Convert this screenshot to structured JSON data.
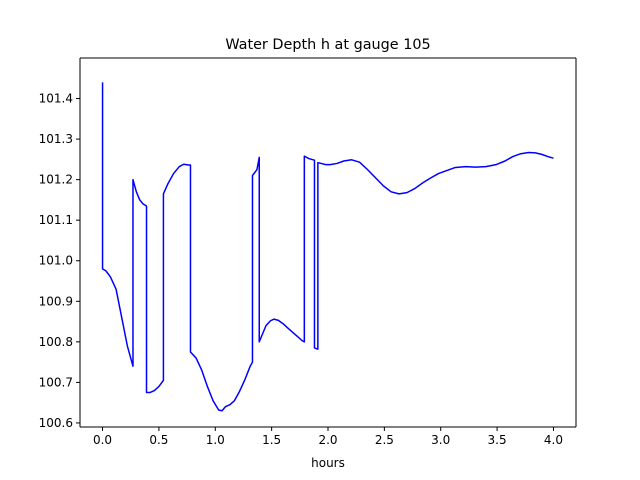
{
  "chart_data": {
    "type": "line",
    "title": "Water Depth h at gauge 105",
    "xlabel": "hours",
    "ylabel": "",
    "xlim": [
      -0.2,
      4.2
    ],
    "ylim": [
      100.59,
      101.5
    ],
    "xticks": [
      0.0,
      0.5,
      1.0,
      1.5,
      2.0,
      2.5,
      3.0,
      3.5,
      4.0
    ],
    "xtick_labels": [
      "0.0",
      "0.5",
      "1.0",
      "1.5",
      "2.0",
      "2.5",
      "3.0",
      "3.5",
      "4.0"
    ],
    "yticks": [
      100.6,
      100.7,
      100.8,
      100.9,
      101.0,
      101.1,
      101.2,
      101.3,
      101.4
    ],
    "ytick_labels": [
      "100.6",
      "100.7",
      "100.8",
      "100.9",
      "101.0",
      "101.1",
      "101.2",
      "101.3",
      "101.4"
    ],
    "grid": false,
    "legend": "none",
    "series": [
      {
        "color": "#0000ff",
        "x": [
          0.0,
          0.0,
          0.03,
          0.07,
          0.12,
          0.17,
          0.22,
          0.27,
          0.27,
          0.3,
          0.33,
          0.36,
          0.39,
          0.39,
          0.42,
          0.46,
          0.5,
          0.54,
          0.54,
          0.58,
          0.63,
          0.68,
          0.72,
          0.76,
          0.78,
          0.78,
          0.83,
          0.88,
          0.93,
          0.98,
          1.03,
          1.06,
          1.09,
          1.13,
          1.17,
          1.21,
          1.26,
          1.31,
          1.33,
          1.33,
          1.37,
          1.39,
          1.39,
          1.42,
          1.45,
          1.49,
          1.52,
          1.56,
          1.6,
          1.64,
          1.68,
          1.73,
          1.77,
          1.79,
          1.79,
          1.83,
          1.88,
          1.88,
          1.91,
          1.91,
          1.94,
          1.98,
          2.02,
          2.08,
          2.14,
          2.21,
          2.28,
          2.35,
          2.42,
          2.49,
          2.56,
          2.63,
          2.7,
          2.77,
          2.84,
          2.91,
          2.98,
          3.05,
          3.13,
          3.22,
          3.31,
          3.4,
          3.49,
          3.57,
          3.64,
          3.71,
          3.78,
          3.84,
          3.9,
          3.95,
          4.0
        ],
        "y": [
          101.44,
          100.98,
          100.975,
          100.96,
          100.93,
          100.86,
          100.79,
          100.74,
          101.2,
          101.17,
          101.15,
          101.14,
          101.135,
          100.675,
          100.675,
          100.68,
          100.69,
          100.705,
          101.165,
          101.19,
          101.215,
          101.232,
          101.238,
          101.236,
          101.236,
          100.775,
          100.76,
          100.73,
          100.69,
          100.655,
          100.632,
          100.63,
          100.64,
          100.645,
          100.655,
          100.675,
          100.705,
          100.74,
          100.75,
          101.21,
          101.225,
          101.255,
          100.8,
          100.82,
          100.84,
          100.852,
          100.856,
          100.853,
          100.845,
          100.835,
          100.825,
          100.813,
          100.803,
          100.8,
          101.258,
          101.252,
          101.248,
          100.785,
          100.782,
          101.242,
          101.24,
          101.237,
          101.237,
          101.24,
          101.246,
          101.249,
          101.243,
          101.225,
          101.205,
          101.185,
          101.17,
          101.165,
          101.168,
          101.178,
          101.192,
          101.204,
          101.215,
          101.222,
          101.23,
          101.232,
          101.231,
          101.232,
          101.237,
          101.246,
          101.257,
          101.264,
          101.267,
          101.266,
          101.262,
          101.257,
          101.253
        ]
      }
    ]
  }
}
